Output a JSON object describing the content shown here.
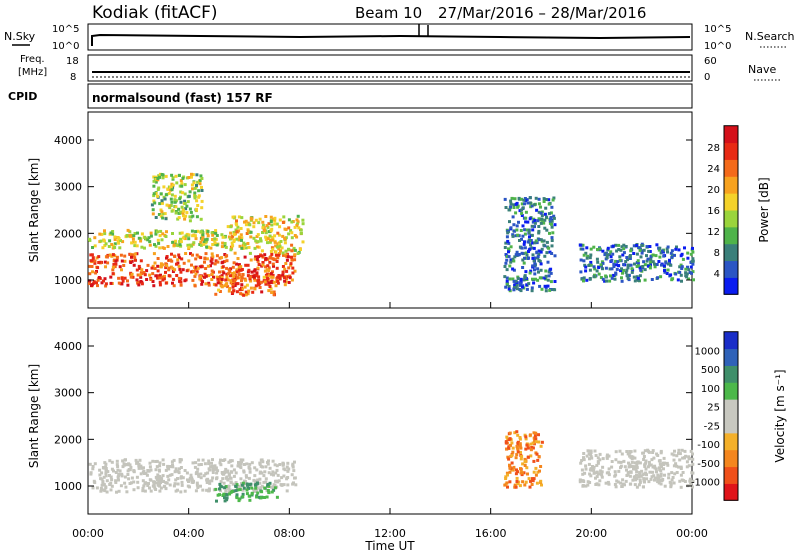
{
  "header": {
    "title": "Kodiak (fitACF)",
    "beam": "Beam 10",
    "date_range": "27/Mar/2016 – 28/Mar/2016"
  },
  "status_panels": {
    "nsky_label": "N.Sky",
    "nsky_ticks": [
      "10^5",
      "10^0"
    ],
    "nsearch_label": "N.Search",
    "nsearch_ticks": [
      "10^5",
      "10^0"
    ],
    "freq_label_1": "Freq.",
    "freq_label_2": "[MHz]",
    "freq_ticks": [
      "18",
      "8"
    ],
    "nave_label": "Nave",
    "nave_ticks": [
      "60",
      "0"
    ],
    "cpid_label": "CPID",
    "cpid_text": "normalsound (fast) 157 RF"
  },
  "colors": {
    "power_scale": [
      "#0a1cf0",
      "#2b55c4",
      "#3a7f7a",
      "#4fb34a",
      "#9ad43c",
      "#f4d22a",
      "#f7a21f",
      "#f46a1a",
      "#e82a14",
      "#d4101a"
    ],
    "velocity_scale": [
      "#1a2ec8",
      "#2f62b8",
      "#3f8f6a",
      "#4cb84a",
      "#c8c8c0",
      "#c8c8c0",
      "#f4b02a",
      "#f4861e",
      "#f0501a",
      "#e0141a"
    ],
    "ground_scatter": "#c4c4bc"
  },
  "chart_data": [
    {
      "type": "heatmap",
      "title": "Power",
      "ylabel": "Slant Range [km]",
      "xlabel": "",
      "yticks": [
        "1000",
        "2000",
        "3000",
        "4000"
      ],
      "ylim": [
        400,
        4600
      ],
      "xlim": [
        0,
        24
      ],
      "colorbar": {
        "label": "Power [dB]",
        "ticks": [
          "4",
          "8",
          "12",
          "16",
          "20",
          "24",
          "28"
        ],
        "range": [
          0,
          30
        ]
      },
      "regions": [
        {
          "t0": 0.0,
          "t1": 8.2,
          "r0": 900,
          "r1": 1600,
          "level": 0.8,
          "desc": "main band"
        },
        {
          "t0": 0.0,
          "t1": 5.5,
          "r0": 1700,
          "r1": 2100,
          "level": 0.5
        },
        {
          "t0": 5.5,
          "t1": 8.5,
          "r0": 1600,
          "r1": 2400,
          "level": 0.55
        },
        {
          "t0": 5.0,
          "t1": 7.5,
          "r0": 700,
          "r1": 1100,
          "level": 0.75
        },
        {
          "t0": 2.5,
          "t1": 4.5,
          "r0": 2300,
          "r1": 3300,
          "level": 0.45
        },
        {
          "t0": 16.5,
          "t1": 18.5,
          "r0": 800,
          "r1": 2800,
          "level": 0.2
        },
        {
          "t0": 19.5,
          "t1": 24.0,
          "r0": 1000,
          "r1": 1800,
          "level": 0.2
        }
      ]
    },
    {
      "type": "heatmap",
      "title": "Velocity",
      "ylabel": "Slant Range [km]",
      "xlabel": "Time UT",
      "yticks": [
        "1000",
        "2000",
        "3000",
        "4000"
      ],
      "ylim": [
        400,
        4600
      ],
      "xlim": [
        0,
        24
      ],
      "xticks": [
        "00:00",
        "04:00",
        "08:00",
        "12:00",
        "16:00",
        "20:00",
        "00:00"
      ],
      "colorbar": {
        "label": "Velocity [m s⁻¹]",
        "ticks": [
          "1000",
          "500",
          "100",
          "25",
          "-25",
          "-100",
          "-500",
          "-1000"
        ]
      },
      "regions": [
        {
          "t0": 0.0,
          "t1": 8.2,
          "r0": 900,
          "r1": 1600,
          "velocity_class": "ground"
        },
        {
          "t0": 5.0,
          "t1": 7.5,
          "r0": 700,
          "r1": 1100,
          "velocity_class": "positive"
        },
        {
          "t0": 16.5,
          "t1": 18.0,
          "r0": 1000,
          "r1": 2200,
          "velocity_class": "negative"
        },
        {
          "t0": 19.5,
          "t1": 24.0,
          "r0": 1000,
          "r1": 1800,
          "velocity_class": "ground"
        }
      ]
    }
  ]
}
